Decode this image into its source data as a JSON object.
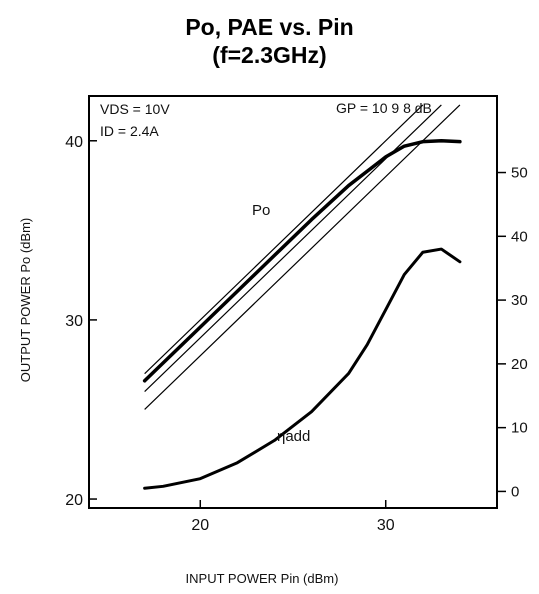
{
  "chart_data": {
    "type": "line",
    "title": "Po, PAE vs. Pin",
    "subtitle": "(f=2.3GHz)",
    "xlabel": "INPUT POWER Pin (dBm)",
    "ylabel": "OUTPUT POWER Po (dBm)",
    "xlim": [
      14,
      36
    ],
    "ylim": [
      19.5,
      42.5
    ],
    "x_ticks": [
      "20",
      "30"
    ],
    "y_ticks": [
      "20",
      "30",
      "40"
    ],
    "y2lim": [
      -2.6,
      62
    ],
    "y2_ticks": [
      "0",
      "10",
      "20",
      "30",
      "40",
      "50"
    ],
    "grid": false,
    "annotations": {
      "vds": "VDS = 10V",
      "id": "ID = 2.4A",
      "gp": "GP = 10 9 8 dB",
      "po_label": "Po",
      "eta_label": "ηadd"
    },
    "gain_lines": [
      {
        "gain_db": 10,
        "x": [
          17,
          32
        ],
        "y": [
          27,
          42
        ]
      },
      {
        "gain_db": 9,
        "x": [
          17,
          33
        ],
        "y": [
          26,
          42
        ]
      },
      {
        "gain_db": 8,
        "x": [
          17,
          34
        ],
        "y": [
          25,
          42
        ]
      }
    ],
    "series": [
      {
        "name": "Po",
        "axis": "left",
        "x": [
          17,
          18,
          20,
          22,
          24,
          26,
          28,
          29,
          30,
          31,
          32,
          33,
          34
        ],
        "y": [
          26.6,
          27.6,
          29.6,
          31.6,
          33.6,
          35.6,
          37.5,
          38.3,
          39.1,
          39.7,
          39.95,
          40.0,
          39.95
        ]
      },
      {
        "name": "ηadd",
        "axis": "right",
        "x": [
          17,
          18,
          20,
          22,
          24,
          26,
          28,
          29,
          30,
          31,
          32,
          33,
          34
        ],
        "y": [
          0.5,
          0.8,
          2.0,
          4.5,
          8.0,
          12.5,
          18.5,
          23.0,
          28.5,
          34.0,
          37.5,
          38.0,
          36.0
        ]
      }
    ]
  }
}
